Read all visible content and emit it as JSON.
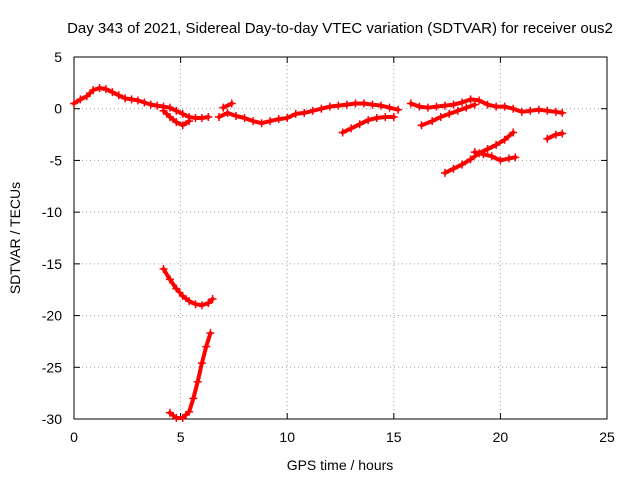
{
  "chart_data": {
    "type": "scatter",
    "title": "Day 343 of 2021, Sidereal Day-to-day VTEC variation (SDTVAR) for receiver ous2",
    "xlabel": "GPS time / hours",
    "ylabel": "SDTVAR / TECUs",
    "xlim": [
      0,
      25
    ],
    "ylim": [
      -30,
      5
    ],
    "xticks": [
      0,
      5,
      10,
      15,
      20,
      25
    ],
    "yticks": [
      5,
      0,
      -5,
      -10,
      -15,
      -20,
      -25,
      -30
    ],
    "grid": true,
    "series_color": "#ff0000",
    "series": [
      {
        "name": "arc-1",
        "points": [
          [
            0.0,
            0.5
          ],
          [
            0.3,
            0.9
          ],
          [
            0.6,
            1.2
          ],
          [
            0.9,
            1.8
          ],
          [
            1.2,
            2.0
          ],
          [
            1.5,
            1.9
          ],
          [
            1.8,
            1.6
          ],
          [
            2.1,
            1.3
          ],
          [
            2.4,
            1.0
          ],
          [
            2.7,
            0.9
          ],
          [
            3.0,
            0.8
          ],
          [
            3.3,
            0.6
          ],
          [
            3.6,
            0.4
          ],
          [
            3.9,
            0.3
          ],
          [
            4.2,
            0.2
          ],
          [
            4.5,
            0.1
          ],
          [
            4.8,
            -0.2
          ],
          [
            5.1,
            -0.5
          ],
          [
            5.4,
            -0.8
          ],
          [
            5.7,
            -0.9
          ],
          [
            6.0,
            -0.9
          ],
          [
            6.3,
            -0.8
          ]
        ]
      },
      {
        "name": "arc-2",
        "points": [
          [
            4.2,
            -0.2
          ],
          [
            4.5,
            -0.8
          ],
          [
            4.8,
            -1.3
          ],
          [
            5.1,
            -1.6
          ],
          [
            5.4,
            -1.2
          ]
        ]
      },
      {
        "name": "arc-3",
        "points": [
          [
            6.8,
            -0.8
          ],
          [
            7.2,
            -0.4
          ],
          [
            7.6,
            -0.7
          ],
          [
            8.0,
            -0.9
          ],
          [
            8.4,
            -1.2
          ],
          [
            8.8,
            -1.4
          ],
          [
            9.2,
            -1.2
          ],
          [
            9.6,
            -1.0
          ],
          [
            10.0,
            -0.9
          ],
          [
            10.4,
            -0.5
          ],
          [
            10.8,
            -0.4
          ],
          [
            11.2,
            -0.2
          ],
          [
            11.6,
            0.0
          ],
          [
            12.0,
            0.2
          ],
          [
            12.4,
            0.3
          ],
          [
            12.8,
            0.4
          ],
          [
            13.2,
            0.5
          ],
          [
            13.6,
            0.5
          ],
          [
            14.0,
            0.4
          ],
          [
            14.4,
            0.3
          ],
          [
            14.8,
            0.1
          ],
          [
            15.2,
            -0.1
          ]
        ]
      },
      {
        "name": "arc-4",
        "points": [
          [
            7.0,
            0.1
          ],
          [
            7.4,
            0.5
          ]
        ]
      },
      {
        "name": "arc-5",
        "points": [
          [
            12.6,
            -2.3
          ],
          [
            13.0,
            -1.9
          ],
          [
            13.4,
            -1.5
          ],
          [
            13.8,
            -1.1
          ],
          [
            14.2,
            -0.9
          ],
          [
            14.6,
            -0.8
          ],
          [
            15.0,
            -0.8
          ]
        ]
      },
      {
        "name": "arc-6",
        "points": [
          [
            15.8,
            0.5
          ],
          [
            16.2,
            0.2
          ],
          [
            16.6,
            0.1
          ],
          [
            17.0,
            0.2
          ],
          [
            17.4,
            0.3
          ],
          [
            17.8,
            0.4
          ],
          [
            18.2,
            0.6
          ],
          [
            18.6,
            0.9
          ],
          [
            19.0,
            0.8
          ],
          [
            19.4,
            0.4
          ],
          [
            19.8,
            0.2
          ],
          [
            20.2,
            0.2
          ],
          [
            20.6,
            0.0
          ],
          [
            21.0,
            -0.3
          ],
          [
            21.4,
            -0.2
          ],
          [
            21.8,
            -0.1
          ],
          [
            22.2,
            -0.2
          ],
          [
            22.6,
            -0.3
          ],
          [
            22.9,
            -0.4
          ]
        ]
      },
      {
        "name": "arc-7",
        "points": [
          [
            16.3,
            -1.6
          ],
          [
            16.8,
            -1.2
          ],
          [
            17.2,
            -0.8
          ],
          [
            17.6,
            -0.5
          ],
          [
            18.0,
            -0.2
          ],
          [
            18.4,
            0.1
          ],
          [
            18.8,
            0.4
          ]
        ]
      },
      {
        "name": "arc-8",
        "points": [
          [
            17.4,
            -6.2
          ],
          [
            17.8,
            -5.8
          ],
          [
            18.2,
            -5.4
          ],
          [
            18.6,
            -4.9
          ],
          [
            19.0,
            -4.3
          ],
          [
            19.4,
            -3.9
          ],
          [
            19.8,
            -3.5
          ],
          [
            20.2,
            -3.0
          ],
          [
            20.6,
            -2.3
          ]
        ]
      },
      {
        "name": "arc-9",
        "points": [
          [
            18.8,
            -4.2
          ],
          [
            19.2,
            -4.4
          ],
          [
            19.6,
            -4.6
          ],
          [
            20.0,
            -5.0
          ],
          [
            20.4,
            -4.8
          ],
          [
            20.7,
            -4.7
          ]
        ]
      },
      {
        "name": "arc-10",
        "points": [
          [
            22.2,
            -2.9
          ],
          [
            22.6,
            -2.5
          ],
          [
            22.9,
            -2.4
          ]
        ]
      },
      {
        "name": "arc-11",
        "points": [
          [
            4.2,
            -15.5
          ],
          [
            4.5,
            -16.5
          ],
          [
            4.8,
            -17.4
          ],
          [
            5.1,
            -18.1
          ],
          [
            5.4,
            -18.6
          ],
          [
            5.7,
            -18.9
          ],
          [
            6.0,
            -19.0
          ],
          [
            6.3,
            -18.8
          ],
          [
            6.5,
            -18.4
          ]
        ]
      },
      {
        "name": "arc-12",
        "points": [
          [
            4.5,
            -29.4
          ],
          [
            4.8,
            -29.9
          ],
          [
            5.1,
            -29.9
          ],
          [
            5.4,
            -29.3
          ],
          [
            5.6,
            -28.0
          ],
          [
            5.8,
            -26.4
          ],
          [
            6.0,
            -24.6
          ],
          [
            6.2,
            -23.0
          ],
          [
            6.4,
            -21.7
          ]
        ]
      }
    ]
  }
}
